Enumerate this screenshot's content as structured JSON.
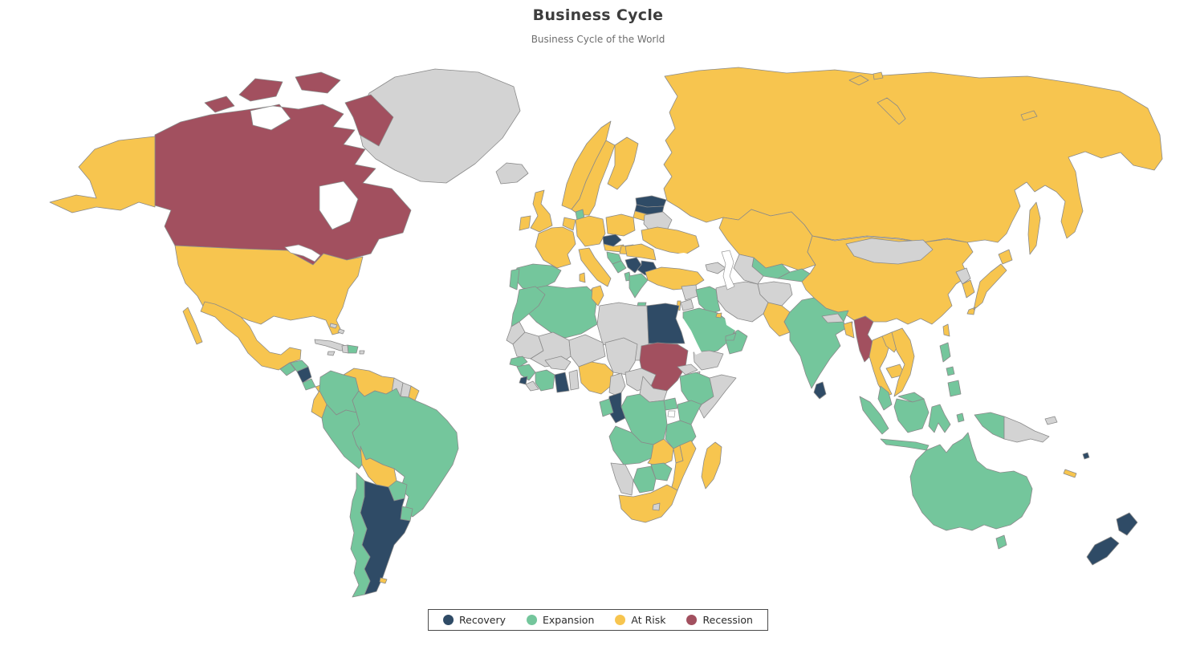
{
  "header": {
    "title": "Business Cycle",
    "subtitle": "Business Cycle of the World"
  },
  "legend": {
    "items": [
      {
        "label": "Recovery",
        "color": "#2F4B66"
      },
      {
        "label": "Expansion",
        "color": "#74C69C"
      },
      {
        "label": "At Risk",
        "color": "#F7C54F"
      },
      {
        "label": "Recession",
        "color": "#A2505F"
      }
    ]
  },
  "map": {
    "no_data_color": "#D3D3D3",
    "border_color": "#8A8A8A",
    "ocean_color": "#FFFFFF",
    "status_colors": {
      "Recovery": "#2F4B66",
      "Expansion": "#74C69C",
      "At Risk": "#F7C54F",
      "Recession": "#A2505F",
      "No Data": "#D3D3D3"
    },
    "countries": {
      "Canada": "Recession",
      "Sudan": "Recession",
      "Myanmar": "Recession",
      "Nicaragua": "Recovery",
      "Argentina": "Recovery",
      "New Zealand": "Recovery",
      "Egypt": "Recovery",
      "Czechia": "Recovery",
      "Estonia": "Recovery",
      "Latvia": "Recovery",
      "Serbia": "Recovery",
      "Bulgaria": "Recovery",
      "Ghana": "Recovery",
      "Sierra Leone": "Recovery",
      "Republic of the Congo": "Recovery",
      "Sri Lanka": "Recovery",
      "Fiji": "Recovery",
      "Guatemala": "Expansion",
      "Honduras": "Expansion",
      "Costa Rica": "Expansion",
      "Dominican Republic": "Expansion",
      "Colombia": "Expansion",
      "Peru": "Expansion",
      "Brazil": "Expansion",
      "Paraguay": "Expansion",
      "Uruguay": "Expansion",
      "Chile": "Expansion",
      "Spain": "Expansion",
      "Portugal": "Expansion",
      "Denmark": "Expansion",
      "Croatia": "Expansion",
      "Bosnia and Herzegovina": "Expansion",
      "Albania": "Expansion",
      "Greece": "Expansion",
      "Morocco": "Expansion",
      "Algeria": "Expansion",
      "Senegal": "Expansion",
      "Guinea": "Expansion",
      "Côte d'Ivoire": "Expansion",
      "Gabon": "Expansion",
      "Democratic Republic of the Congo": "Expansion",
      "Uganda": "Expansion",
      "Kenya": "Expansion",
      "Ethiopia": "Expansion",
      "Tanzania": "Expansion",
      "Angola": "Expansion",
      "Zimbabwe": "Expansion",
      "Botswana": "Expansion",
      "Saudi Arabia": "Expansion",
      "Iraq": "Expansion",
      "Oman": "Expansion",
      "United Arab Emirates": "Expansion",
      "Uzbekistan": "Expansion",
      "Kyrgyzstan": "Expansion",
      "Tajikistan": "Expansion",
      "India": "Expansion",
      "Malaysia": "Expansion",
      "Indonesia": "Expansion",
      "Philippines": "Expansion",
      "Australia": "Expansion",
      "United States": "At Risk",
      "Mexico": "At Risk",
      "Panama": "At Risk",
      "Venezuela": "At Risk",
      "French Guiana": "At Risk",
      "Ecuador": "At Risk",
      "Bolivia": "At Risk",
      "Falkland Islands": "At Risk",
      "United Kingdom": "At Risk",
      "Ireland": "At Risk",
      "Norway": "At Risk",
      "Sweden": "At Risk",
      "Finland": "At Risk",
      "Germany": "At Risk",
      "Netherlands": "At Risk",
      "Belgium": "At Risk",
      "France": "At Risk",
      "Italy": "At Risk",
      "Poland": "At Risk",
      "Austria": "At Risk",
      "Hungary": "At Risk",
      "Romania": "At Risk",
      "Ukraine": "At Risk",
      "Lithuania": "At Risk",
      "Russia": "At Risk",
      "Kazakhstan": "At Risk",
      "Turkey": "At Risk",
      "Israel": "At Risk",
      "Kuwait": "At Risk",
      "Pakistan": "At Risk",
      "Bangladesh": "At Risk",
      "China": "At Risk",
      "South Korea": "At Risk",
      "Japan": "At Risk",
      "Taiwan": "At Risk",
      "Thailand": "At Risk",
      "Laos": "At Risk",
      "Cambodia": "At Risk",
      "Vietnam": "At Risk",
      "Tunisia": "At Risk",
      "Nigeria": "At Risk",
      "Zambia": "At Risk",
      "Malawi": "At Risk",
      "Mozambique": "At Risk",
      "South Africa": "At Risk",
      "Madagascar": "At Risk",
      "New Caledonia": "At Risk",
      "Greenland": "No Data",
      "Iceland": "No Data",
      "Cuba": "No Data",
      "Haiti": "No Data",
      "Jamaica": "No Data",
      "Puerto Rico": "No Data",
      "The Bahamas": "No Data",
      "Guyana": "No Data",
      "Suriname": "No Data",
      "Belarus": "No Data",
      "Libya": "No Data",
      "Western Sahara": "No Data",
      "Mauritania": "No Data",
      "Mali": "No Data",
      "Niger": "No Data",
      "Chad": "No Data",
      "Burkina Faso": "No Data",
      "Togo": "No Data",
      "Benin": "No Data",
      "Liberia": "No Data",
      "Cameroon": "No Data",
      "Central African Republic": "No Data",
      "South Sudan": "No Data",
      "Eritrea": "No Data",
      "Djibouti": "No Data",
      "Somalia": "No Data",
      "Namibia": "No Data",
      "Lesotho": "No Data",
      "Syria": "No Data",
      "Jordan": "No Data",
      "Yemen": "No Data",
      "Iran": "No Data",
      "Afghanistan": "No Data",
      "Turkmenistan": "No Data",
      "Georgia": "No Data",
      "Armenia": "No Data",
      "Azerbaijan": "No Data",
      "Mongolia": "No Data",
      "Nepal": "No Data",
      "Bhutan": "No Data",
      "North Korea": "No Data",
      "Papua New Guinea": "No Data"
    }
  },
  "chart_data": {
    "type": "choropleth-map",
    "title": "Business Cycle",
    "subtitle": "Business Cycle of the World",
    "legend_position": "bottom",
    "categories": [
      "Recovery",
      "Expansion",
      "At Risk",
      "Recession"
    ],
    "category_colors": [
      "#2F4B66",
      "#74C69C",
      "#F7C54F",
      "#A2505F"
    ]
  }
}
